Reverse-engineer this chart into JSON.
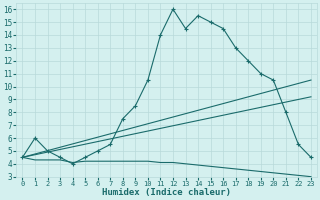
{
  "xlabel": "Humidex (Indice chaleur)",
  "bg_color": "#d4f0ef",
  "grid_color": "#b8dada",
  "line_color": "#1a6b6b",
  "xlim": [
    -0.5,
    23.5
  ],
  "ylim": [
    3,
    16.5
  ],
  "xticks": [
    0,
    1,
    2,
    3,
    4,
    5,
    6,
    7,
    8,
    9,
    10,
    11,
    12,
    13,
    14,
    15,
    16,
    17,
    18,
    19,
    20,
    21,
    22,
    23
  ],
  "yticks": [
    3,
    4,
    5,
    6,
    7,
    8,
    9,
    10,
    11,
    12,
    13,
    14,
    15,
    16
  ],
  "series1_x": [
    0,
    1,
    2,
    3,
    4,
    5,
    6,
    7,
    8,
    9,
    10,
    11,
    12,
    13,
    14,
    15,
    16,
    17,
    18,
    19,
    20,
    21,
    22,
    23
  ],
  "series1_y": [
    4.5,
    6.0,
    5.0,
    4.5,
    4.0,
    4.5,
    5.0,
    5.5,
    7.5,
    8.5,
    10.5,
    14.0,
    16.0,
    14.5,
    15.5,
    15.0,
    14.5,
    13.0,
    12.0,
    11.0,
    10.5,
    8.0,
    5.5,
    4.5
  ],
  "series2_x": [
    0,
    23
  ],
  "series2_y": [
    4.5,
    10.5
  ],
  "series3_x": [
    0,
    23
  ],
  "series3_y": [
    4.5,
    9.2
  ],
  "series4_x": [
    0,
    1,
    2,
    3,
    4,
    5,
    6,
    7,
    8,
    9,
    10,
    11,
    12,
    13,
    14,
    15,
    16,
    17,
    18,
    19,
    20,
    21,
    22,
    23
  ],
  "series4_y": [
    4.5,
    4.3,
    4.3,
    4.3,
    4.1,
    4.2,
    4.2,
    4.2,
    4.2,
    4.2,
    4.2,
    4.1,
    4.1,
    4.0,
    3.9,
    3.8,
    3.7,
    3.6,
    3.5,
    3.4,
    3.3,
    3.2,
    3.1,
    3.0
  ]
}
